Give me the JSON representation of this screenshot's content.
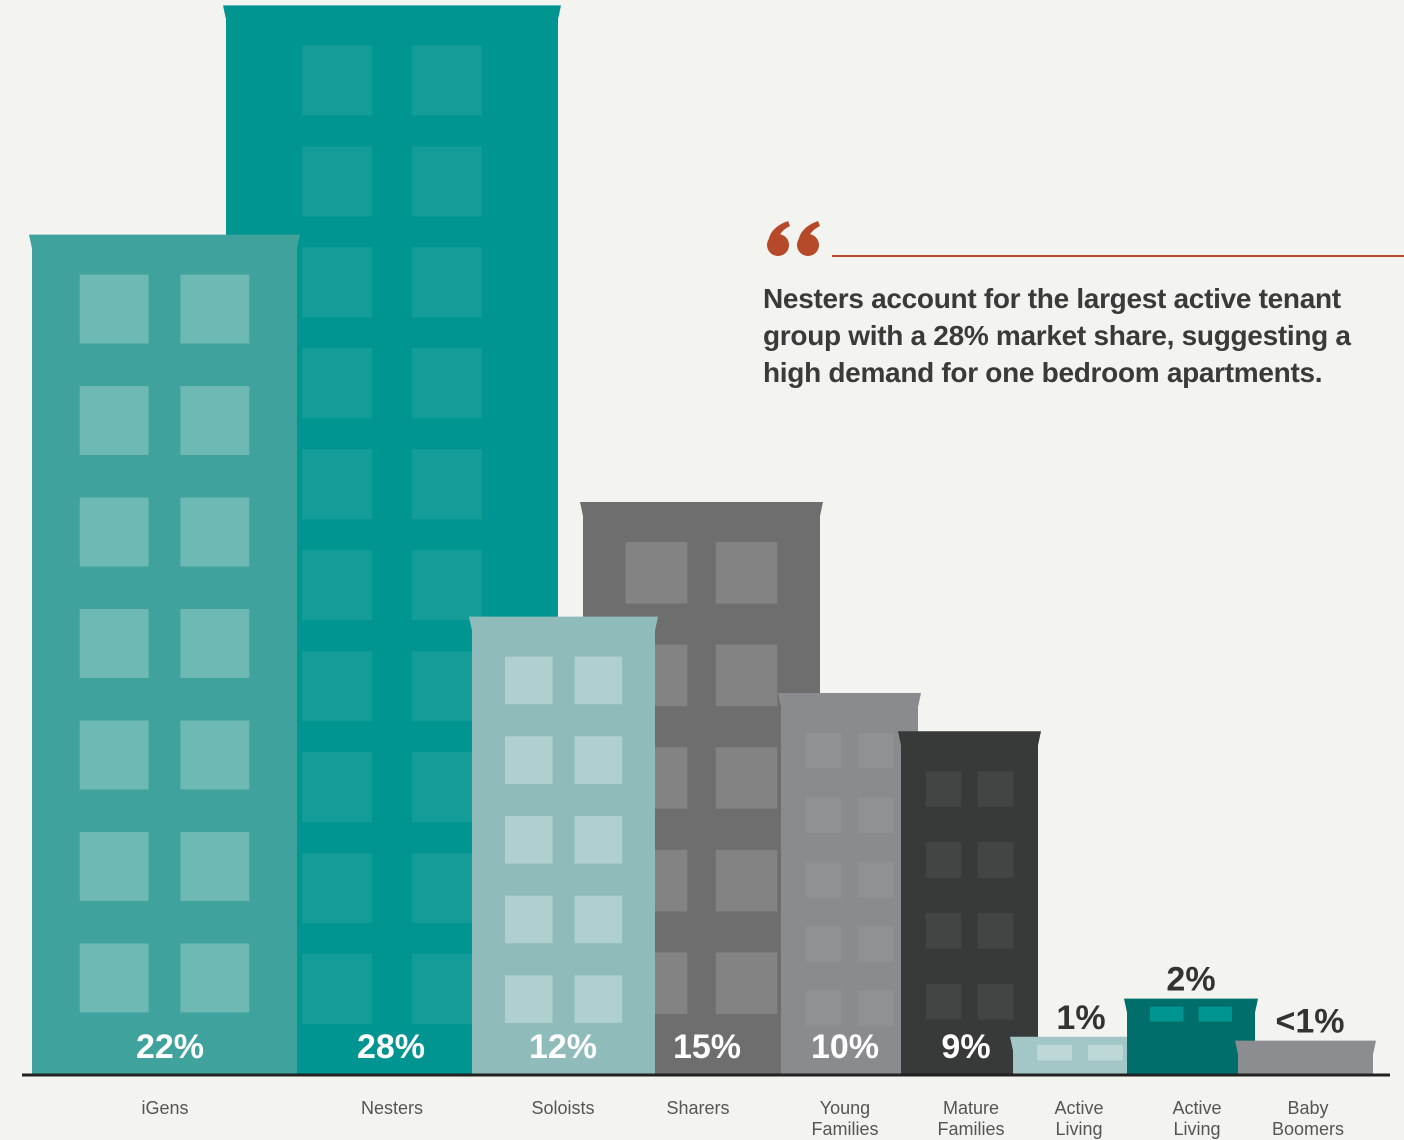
{
  "chart_data": {
    "type": "bar",
    "annotation": "Nesters account for the largest active tenant group with a 28% market share, suggesting a high demand for one bedroom apartments.",
    "categories": [
      "iGens",
      "Nesters",
      "Soloists",
      "Sharers",
      "Young Families",
      "Mature Families",
      "Active Living Couples",
      "Active Living Soloists",
      "Baby Boomers"
    ],
    "values": [
      22,
      28,
      12,
      15,
      10,
      9,
      1,
      2,
      0.9
    ],
    "value_labels": [
      "22%",
      "28%",
      "12%",
      "15%",
      "10%",
      "9%",
      "1%",
      "2%",
      "<1%"
    ],
    "colors": [
      "#3fa29c",
      "#009590",
      "#8fbcbb",
      "#6d6e6d",
      "#8a8b8e",
      "#373a38",
      "#a2c7c6",
      "#006e6b",
      "#8c8d90"
    ]
  }
}
